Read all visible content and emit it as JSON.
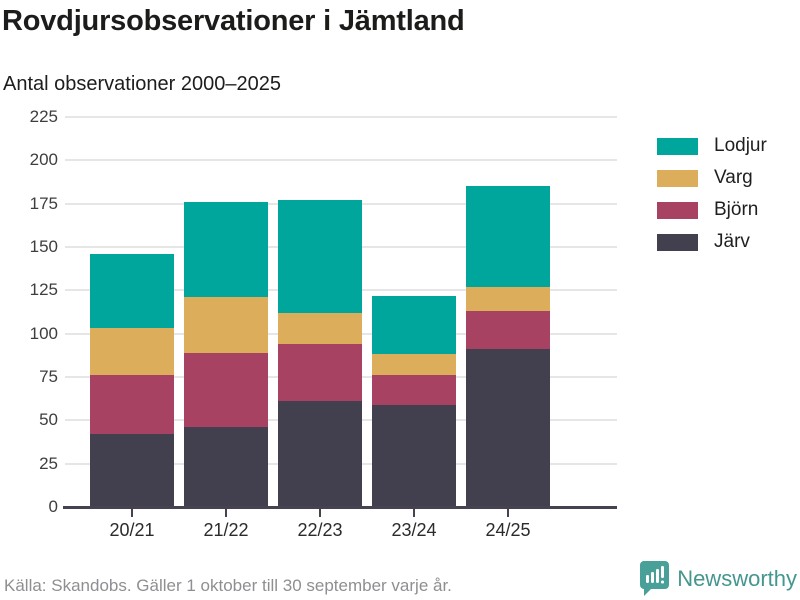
{
  "header": {
    "title": "Rovdjursobservationer i Jämtland",
    "subtitle": "Antal observationer 2000–2025"
  },
  "chart_data": {
    "type": "bar",
    "stacked": true,
    "title": "Rovdjursobservationer i Jämtland",
    "subtitle": "Antal observationer 2000–2025",
    "categories": [
      "20/21",
      "21/22",
      "22/23",
      "23/24",
      "24/25"
    ],
    "series": [
      {
        "name": "Järv",
        "color": "#423f4e",
        "values": [
          42,
          46,
          61,
          59,
          91
        ]
      },
      {
        "name": "Björn",
        "color": "#a84263",
        "values": [
          34,
          43,
          33,
          17,
          22
        ]
      },
      {
        "name": "Varg",
        "color": "#dcae5b",
        "values": [
          27,
          32,
          18,
          12,
          14
        ]
      },
      {
        "name": "Lodjur",
        "color": "#00a59c",
        "values": [
          43,
          55,
          65,
          34,
          58
        ]
      }
    ],
    "totals": [
      146,
      176,
      177,
      122,
      185
    ],
    "legend": [
      "Lodjur",
      "Varg",
      "Björn",
      "Järv"
    ],
    "legend_position": "right",
    "xlabel": "",
    "ylabel": "",
    "ylim": [
      0,
      225
    ],
    "ytick_step": 25,
    "grid": true
  },
  "footer": {
    "source": "Källa: Skandobs. Gäller 1 oktober till 30 september varje år.",
    "brand": "Newsworthy",
    "brand_color": "#45968e"
  }
}
